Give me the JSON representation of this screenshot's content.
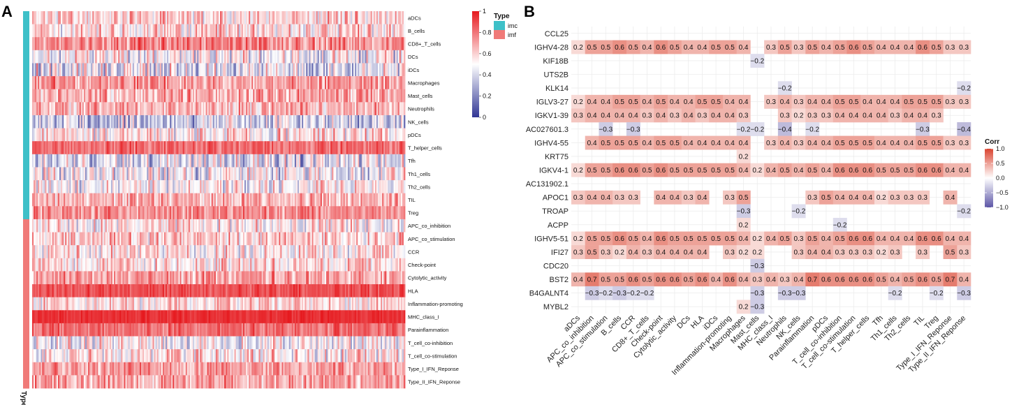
{
  "chart_data": [
    {
      "panel": "A",
      "type": "heatmap",
      "rows": [
        "aDCs",
        "B_cells",
        "CD8+_T_cells",
        "DCs",
        "iDCs",
        "Macrophages",
        "Mast_cells",
        "Neutrophils",
        "NK_cells",
        "pDCs",
        "T_helper_cells",
        "Tfh",
        "Th1_cells",
        "Th2_cells",
        "TIL",
        "Treg",
        "APC_co_inhibition",
        "APC_co_stimulation",
        "CCR",
        "Check-point",
        "Cytolytic_activity",
        "HLA",
        "Inflammation-promoting",
        "MHC_class_I",
        "Parainflammation",
        "T_cell_co-inhibition",
        "T_cell_co-stimulation",
        "Type_I_IFN_Reponse",
        "Type_II_IFN_Reponse"
      ],
      "row_type": [
        "imc",
        "imc",
        "imc",
        "imc",
        "imc",
        "imc",
        "imc",
        "imc",
        "imc",
        "imc",
        "imc",
        "imc",
        "imc",
        "imc",
        "imc",
        "imc",
        "imf",
        "imf",
        "imf",
        "imf",
        "imf",
        "imf",
        "imf",
        "imf",
        "imf",
        "imf",
        "imf",
        "imf",
        "imf"
      ],
      "row_mean": [
        0.6,
        0.58,
        0.75,
        0.5,
        0.45,
        0.72,
        0.68,
        0.66,
        0.38,
        0.55,
        0.82,
        0.42,
        0.48,
        0.5,
        0.66,
        0.74,
        0.55,
        0.6,
        0.55,
        0.58,
        0.7,
        0.88,
        0.58,
        0.95,
        0.82,
        0.5,
        0.55,
        0.72,
        0.7
      ],
      "row_spread": [
        0.18,
        0.2,
        0.15,
        0.22,
        0.25,
        0.15,
        0.16,
        0.16,
        0.22,
        0.2,
        0.1,
        0.22,
        0.22,
        0.2,
        0.16,
        0.13,
        0.18,
        0.18,
        0.18,
        0.18,
        0.15,
        0.08,
        0.16,
        0.04,
        0.1,
        0.2,
        0.2,
        0.15,
        0.16
      ],
      "n_samples": 260,
      "colorbar": {
        "ticks": [
          "1",
          "0.8",
          "0.6",
          "0.4",
          "0.2",
          "0"
        ],
        "range": [
          0,
          1
        ]
      },
      "legend_title": "Type",
      "legend_entries": [
        {
          "label": "imc",
          "color": "#3ec0c8"
        },
        {
          "label": "imf",
          "color": "#f07a78"
        }
      ],
      "annotation_label": "Type"
    },
    {
      "panel": "B",
      "type": "heatmap",
      "rows": [
        "CCL25",
        "IGHV4-28",
        "KIF18B",
        "UTS2B",
        "KLK14",
        "IGLV3-27",
        "IGKV1-39",
        "AC027601.3",
        "IGHV4-55",
        "KRT75",
        "IGKV4-1",
        "AC131902.1",
        "APOC1",
        "TROAP",
        "ACPP",
        "IGHV5-51",
        "IFI27",
        "CDC20",
        "BST2",
        "B4GALNT4",
        "MYBL2"
      ],
      "columns": [
        "aDCs",
        "APC_co_inhibition",
        "APC_co_stimulation",
        "B_cells",
        "CCR",
        "CD8+_T_cells",
        "Check-point",
        "Cytolytic_activity",
        "DCs",
        "HLA",
        "iDCs",
        "Inflammation-promoting",
        "Macrophages",
        "Mast_cells",
        "MHC_class_I",
        "Neutrophils",
        "NK_cells",
        "Parainflammation",
        "pDCs",
        "T_cell_co-inhibition",
        "T_cell_co-stimulation",
        "T_helper_cells",
        "Tfh",
        "Th1_cells",
        "Th2_cells",
        "TIL",
        "Treg",
        "Type_I_IFN_Reponse",
        "Type_II_IFN_Reponse"
      ],
      "values": [
        [
          null,
          null,
          null,
          null,
          null,
          null,
          null,
          null,
          null,
          null,
          null,
          null,
          null,
          null,
          null,
          null,
          null,
          null,
          null,
          null,
          null,
          null,
          null,
          null,
          null,
          null,
          null,
          null,
          null
        ],
        [
          0.2,
          0.5,
          0.5,
          0.6,
          0.5,
          0.4,
          0.6,
          0.5,
          0.4,
          0.4,
          0.5,
          0.5,
          0.4,
          null,
          0.3,
          0.5,
          0.3,
          0.5,
          0.4,
          0.5,
          0.6,
          0.5,
          0.4,
          0.4,
          0.4,
          0.6,
          0.5,
          0.3,
          0.3
        ],
        [
          null,
          null,
          null,
          null,
          null,
          null,
          null,
          null,
          null,
          null,
          null,
          null,
          null,
          -0.2,
          null,
          null,
          null,
          null,
          null,
          null,
          null,
          null,
          null,
          null,
          null,
          null,
          null,
          null,
          null
        ],
        [
          null,
          null,
          null,
          null,
          null,
          null,
          null,
          null,
          null,
          null,
          null,
          null,
          null,
          null,
          null,
          null,
          null,
          null,
          null,
          null,
          null,
          null,
          null,
          null,
          null,
          null,
          null,
          null,
          null
        ],
        [
          null,
          null,
          null,
          null,
          null,
          null,
          null,
          null,
          null,
          null,
          null,
          null,
          null,
          null,
          null,
          -0.2,
          null,
          null,
          null,
          null,
          null,
          null,
          null,
          null,
          null,
          null,
          null,
          null,
          -0.2
        ],
        [
          0.2,
          0.4,
          0.4,
          0.5,
          0.5,
          0.4,
          0.5,
          0.4,
          0.4,
          0.5,
          0.5,
          0.4,
          0.4,
          null,
          0.3,
          0.4,
          0.3,
          0.4,
          0.4,
          0.5,
          0.5,
          0.4,
          0.4,
          0.4,
          0.5,
          0.5,
          0.5,
          0.3,
          0.3
        ],
        [
          0.3,
          0.4,
          0.4,
          0.4,
          0.4,
          0.3,
          0.4,
          0.3,
          0.4,
          0.3,
          0.4,
          0.4,
          0.3,
          null,
          null,
          0.3,
          0.2,
          0.3,
          0.3,
          0.4,
          0.4,
          0.4,
          0.4,
          0.3,
          0.4,
          0.4,
          0.3,
          null,
          null
        ],
        [
          null,
          null,
          -0.3,
          null,
          -0.3,
          null,
          null,
          null,
          null,
          null,
          null,
          null,
          -0.2,
          -0.2,
          null,
          -0.4,
          null,
          -0.2,
          null,
          null,
          null,
          null,
          null,
          null,
          null,
          -0.3,
          null,
          null,
          -0.4
        ],
        [
          null,
          0.4,
          0.5,
          0.5,
          0.5,
          0.4,
          0.5,
          0.5,
          0.4,
          0.4,
          0.4,
          0.4,
          0.4,
          null,
          0.3,
          0.4,
          0.3,
          0.4,
          0.4,
          0.5,
          0.5,
          0.5,
          0.4,
          0.4,
          0.4,
          0.5,
          0.5,
          0.3,
          0.3
        ],
        [
          null,
          null,
          null,
          null,
          null,
          null,
          null,
          null,
          null,
          null,
          null,
          null,
          0.2,
          null,
          null,
          null,
          null,
          null,
          null,
          null,
          null,
          null,
          null,
          null,
          null,
          null,
          null,
          null,
          null
        ],
        [
          0.2,
          0.5,
          0.5,
          0.6,
          0.6,
          0.5,
          0.6,
          0.5,
          0.5,
          0.5,
          0.5,
          0.5,
          0.4,
          0.2,
          0.4,
          0.5,
          0.4,
          0.5,
          0.4,
          0.6,
          0.6,
          0.6,
          0.5,
          0.5,
          0.5,
          0.6,
          0.6,
          0.4,
          0.4
        ],
        [
          null,
          null,
          null,
          null,
          null,
          null,
          null,
          null,
          null,
          null,
          null,
          null,
          null,
          null,
          null,
          null,
          null,
          null,
          null,
          null,
          null,
          null,
          null,
          null,
          null,
          null,
          null,
          null,
          null
        ],
        [
          0.3,
          0.4,
          0.4,
          0.3,
          0.3,
          null,
          0.4,
          0.4,
          0.3,
          0.4,
          null,
          0.3,
          0.5,
          null,
          null,
          null,
          null,
          0.3,
          0.5,
          0.4,
          0.4,
          0.4,
          0.2,
          0.3,
          0.3,
          0.3,
          null,
          0.4,
          null
        ],
        [
          null,
          null,
          null,
          null,
          null,
          null,
          null,
          null,
          null,
          null,
          null,
          null,
          -0.3,
          null,
          null,
          null,
          -0.2,
          null,
          null,
          null,
          null,
          null,
          null,
          null,
          null,
          null,
          null,
          null,
          -0.2
        ],
        [
          null,
          null,
          null,
          null,
          null,
          null,
          null,
          null,
          null,
          null,
          null,
          null,
          0.2,
          null,
          null,
          null,
          null,
          null,
          null,
          -0.2,
          null,
          null,
          null,
          null,
          null,
          null,
          null,
          null,
          null
        ],
        [
          0.2,
          0.5,
          0.5,
          0.6,
          0.5,
          0.4,
          0.6,
          0.5,
          0.5,
          0.5,
          0.5,
          0.5,
          0.4,
          0.2,
          0.4,
          0.5,
          0.3,
          0.5,
          0.4,
          0.5,
          0.6,
          0.6,
          0.4,
          0.4,
          0.4,
          0.6,
          0.6,
          0.4,
          0.4
        ],
        [
          0.3,
          0.5,
          0.3,
          0.2,
          0.4,
          0.3,
          0.4,
          0.4,
          0.4,
          0.4,
          null,
          0.3,
          0.2,
          0.2,
          null,
          null,
          0.3,
          0.4,
          0.4,
          0.3,
          0.3,
          0.3,
          0.2,
          0.3,
          null,
          0.3,
          null,
          0.5,
          0.3
        ],
        [
          null,
          null,
          null,
          null,
          null,
          null,
          null,
          null,
          null,
          null,
          null,
          null,
          null,
          -0.3,
          null,
          null,
          null,
          null,
          null,
          null,
          null,
          null,
          null,
          null,
          null,
          null,
          null,
          null,
          null
        ],
        [
          0.4,
          0.7,
          0.5,
          0.5,
          0.6,
          0.5,
          0.6,
          0.6,
          0.5,
          0.6,
          0.4,
          0.6,
          0.4,
          0.3,
          0.4,
          0.3,
          0.4,
          0.7,
          0.6,
          0.6,
          0.6,
          0.6,
          0.5,
          0.4,
          0.5,
          0.6,
          0.5,
          0.7,
          0.4
        ],
        [
          null,
          -0.3,
          -0.2,
          -0.3,
          -0.2,
          -0.2,
          null,
          null,
          null,
          null,
          null,
          null,
          null,
          -0.3,
          null,
          -0.3,
          -0.3,
          null,
          null,
          null,
          null,
          null,
          null,
          -0.2,
          null,
          null,
          -0.2,
          null,
          -0.3
        ],
        [
          null,
          null,
          null,
          null,
          null,
          null,
          null,
          null,
          null,
          null,
          null,
          null,
          0.2,
          -0.3,
          null,
          null,
          null,
          null,
          null,
          null,
          null,
          null,
          null,
          null,
          null,
          null,
          null,
          null,
          null
        ]
      ],
      "colorbar": {
        "title": "Corr",
        "ticks": [
          "1.0",
          "0.5",
          "0.0",
          "−0.5",
          "−1.0"
        ],
        "range": [
          -1,
          1
        ]
      }
    }
  ],
  "panels": {
    "a_letter": "A",
    "b_letter": "B"
  }
}
